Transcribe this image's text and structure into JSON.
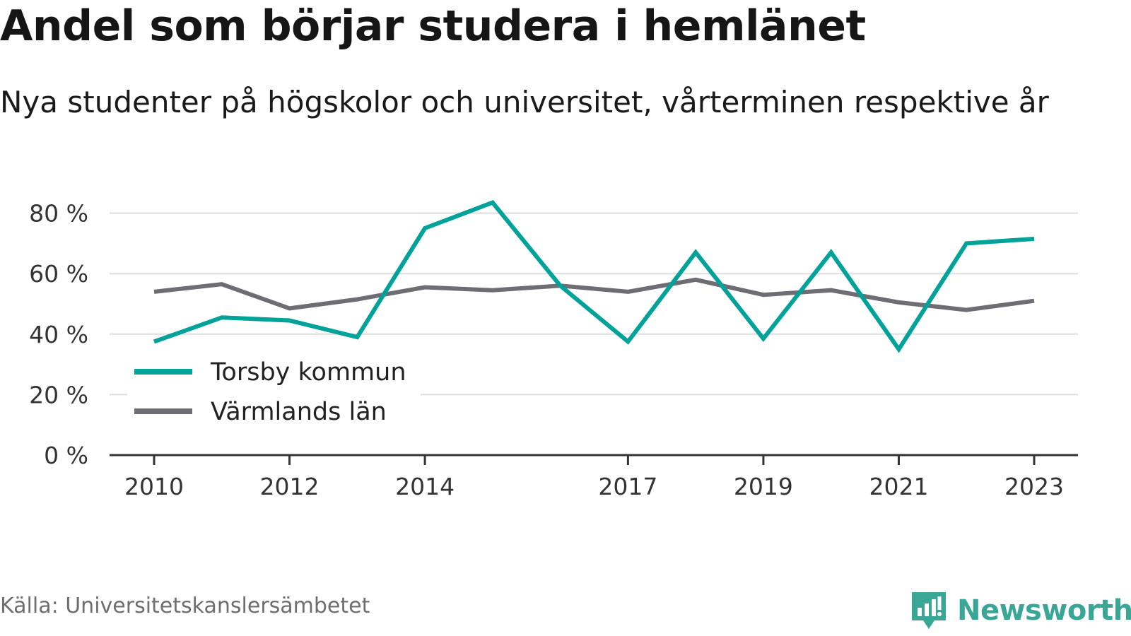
{
  "title": "Andel som börjar studera i hemlänet",
  "subtitle": "Nya studenter på högskolor och universitet, vårterminen respektive år",
  "source": "Källa: Universitetskanslersämbetet",
  "brand": "Newsworthy",
  "colors": {
    "torsby": "#00a299",
    "varmland": "#6e6d74",
    "grid": "#dddddd",
    "axis": "#333333",
    "brand": "#3aa796"
  },
  "chart_data": {
    "type": "line",
    "x": [
      2010,
      2011,
      2012,
      2013,
      2014,
      2015,
      2016,
      2017,
      2018,
      2019,
      2020,
      2021,
      2022,
      2023
    ],
    "x_tick_labels": [
      "2010",
      "2012",
      "2014",
      "2017",
      "2019",
      "2021",
      "2023"
    ],
    "y_tick_labels": [
      "0 %",
      "20 %",
      "40 %",
      "60 %",
      "80 %"
    ],
    "y_ticks": [
      0,
      20,
      40,
      60,
      80
    ],
    "ylim": [
      0,
      85
    ],
    "grid": true,
    "legend_position": "bottom-left",
    "series": [
      {
        "name": "Torsby kommun",
        "color": "#00a299",
        "values": [
          37.5,
          45.5,
          44.5,
          39,
          75,
          83.5,
          56,
          37.5,
          67,
          38.5,
          67,
          35,
          70,
          71.5
        ]
      },
      {
        "name": "Värmlands län",
        "color": "#6e6d74",
        "values": [
          54,
          56.5,
          48.5,
          51.5,
          55.5,
          54.5,
          56,
          54,
          58,
          53,
          54.5,
          50.5,
          48,
          51
        ]
      }
    ]
  }
}
